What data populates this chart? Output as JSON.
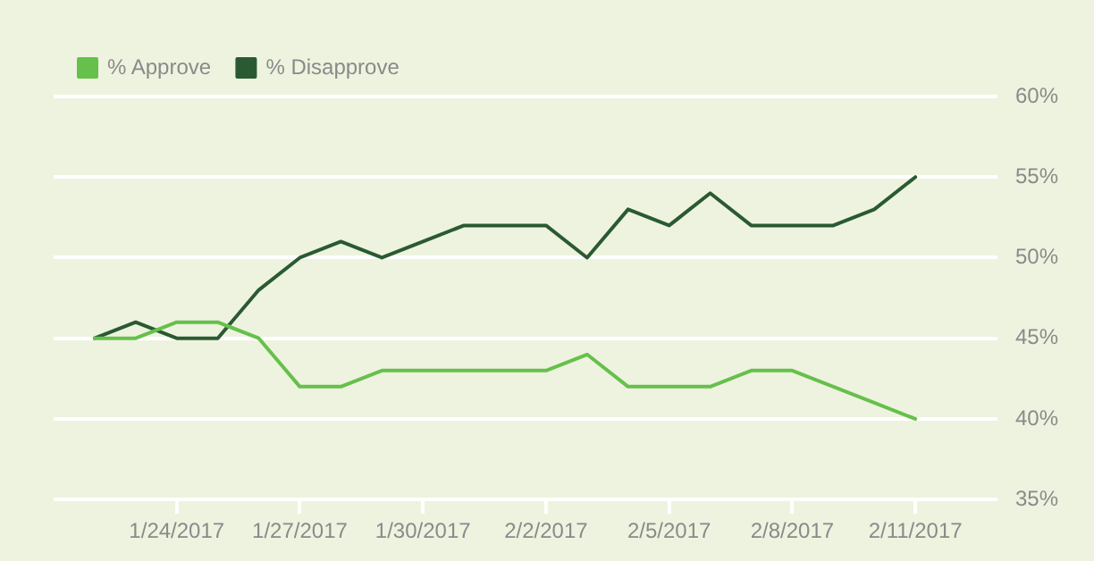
{
  "chart_data": {
    "type": "line",
    "x": [
      "2017-01-22",
      "2017-01-23",
      "2017-01-24",
      "2017-01-25",
      "2017-01-26",
      "2017-01-27",
      "2017-01-28",
      "2017-01-29",
      "2017-01-30",
      "2017-01-31",
      "2017-02-01",
      "2017-02-02",
      "2017-02-03",
      "2017-02-04",
      "2017-02-05",
      "2017-02-06",
      "2017-02-07",
      "2017-02-08",
      "2017-02-09",
      "2017-02-10",
      "2017-02-11"
    ],
    "series": [
      {
        "name": "% Approve",
        "color": "#66c04c",
        "values": [
          45,
          45,
          46,
          46,
          45,
          42,
          42,
          43,
          43,
          43,
          43,
          43,
          44,
          42,
          42,
          42,
          43,
          43,
          42,
          41,
          40
        ]
      },
      {
        "name": "% Disapprove",
        "color": "#2a5a32",
        "values": [
          45,
          46,
          45,
          45,
          48,
          50,
          51,
          50,
          51,
          52,
          52,
          52,
          50,
          53,
          52,
          54,
          52,
          52,
          52,
          53,
          55
        ]
      }
    ],
    "xlim": [
      "2017-01-21",
      "2017-02-13"
    ],
    "xticks": [
      {
        "value": "2017-01-24",
        "label": "1/24/2017"
      },
      {
        "value": "2017-01-27",
        "label": "1/27/2017"
      },
      {
        "value": "2017-01-30",
        "label": "1/30/2017"
      },
      {
        "value": "2017-02-02",
        "label": "2/2/2017"
      },
      {
        "value": "2017-02-05",
        "label": "2/5/2017"
      },
      {
        "value": "2017-02-08",
        "label": "2/8/2017"
      },
      {
        "value": "2017-02-11",
        "label": "2/11/2017"
      }
    ],
    "ylim": [
      35,
      60
    ],
    "yticks": [
      {
        "value": 35,
        "label": "35%"
      },
      {
        "value": 40,
        "label": "40%"
      },
      {
        "value": 45,
        "label": "45%"
      },
      {
        "value": 50,
        "label": "50%"
      },
      {
        "value": 55,
        "label": "55%"
      },
      {
        "value": 60,
        "label": "60%"
      }
    ],
    "grid": "y",
    "legend": "top left",
    "marker": "none",
    "line_style": "solid"
  }
}
